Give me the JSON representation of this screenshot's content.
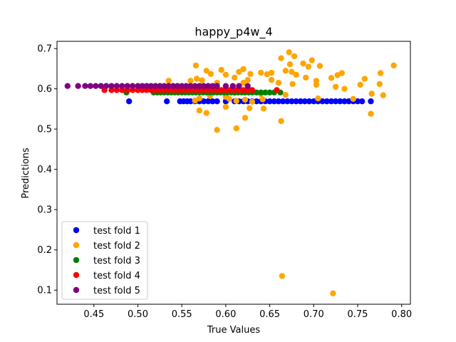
{
  "chart_data": {
    "type": "scatter",
    "title": "happy_p4w_4",
    "xlabel": "True Values",
    "ylabel": "Predictions",
    "xlim": [
      0.408,
      0.81
    ],
    "ylim": [
      0.065,
      0.718
    ],
    "xticks": [
      0.45,
      0.5,
      0.55,
      0.6,
      0.65,
      0.7,
      0.75,
      0.8
    ],
    "xtick_labels": [
      "0.45",
      "0.50",
      "0.55",
      "0.60",
      "0.65",
      "0.70",
      "0.75",
      "0.80"
    ],
    "yticks": [
      0.1,
      0.2,
      0.3,
      0.4,
      0.5,
      0.6,
      0.7
    ],
    "ytick_labels": [
      "0.1",
      "0.2",
      "0.3",
      "0.4",
      "0.5",
      "0.6",
      "0.7"
    ],
    "grid": false,
    "legend_position": "lower-left",
    "series": [
      {
        "name": "test fold 1",
        "color": "#0000ff",
        "points": [
          [
            0.49,
            0.569
          ],
          [
            0.533,
            0.569
          ],
          [
            0.548,
            0.569
          ],
          [
            0.552,
            0.569
          ],
          [
            0.556,
            0.569
          ],
          [
            0.56,
            0.569
          ],
          [
            0.565,
            0.569
          ],
          [
            0.57,
            0.569
          ],
          [
            0.575,
            0.569
          ],
          [
            0.58,
            0.569
          ],
          [
            0.585,
            0.569
          ],
          [
            0.59,
            0.569
          ],
          [
            0.6,
            0.569
          ],
          [
            0.61,
            0.569
          ],
          [
            0.615,
            0.569
          ],
          [
            0.62,
            0.569
          ],
          [
            0.625,
            0.569
          ],
          [
            0.63,
            0.569
          ],
          [
            0.635,
            0.569
          ],
          [
            0.64,
            0.569
          ],
          [
            0.645,
            0.569
          ],
          [
            0.65,
            0.569
          ],
          [
            0.655,
            0.569
          ],
          [
            0.66,
            0.569
          ],
          [
            0.665,
            0.569
          ],
          [
            0.67,
            0.569
          ],
          [
            0.675,
            0.569
          ],
          [
            0.68,
            0.569
          ],
          [
            0.685,
            0.569
          ],
          [
            0.69,
            0.569
          ],
          [
            0.695,
            0.569
          ],
          [
            0.7,
            0.569
          ],
          [
            0.705,
            0.569
          ],
          [
            0.71,
            0.569
          ],
          [
            0.715,
            0.569
          ],
          [
            0.72,
            0.569
          ],
          [
            0.725,
            0.569
          ],
          [
            0.73,
            0.569
          ],
          [
            0.735,
            0.569
          ],
          [
            0.74,
            0.569
          ],
          [
            0.745,
            0.569
          ],
          [
            0.75,
            0.569
          ],
          [
            0.755,
            0.569
          ],
          [
            0.765,
            0.569
          ]
        ]
      },
      {
        "name": "test fold 2",
        "color": "#ffa500",
        "points": [
          [
            0.672,
            0.691
          ],
          [
            0.678,
            0.681
          ],
          [
            0.663,
            0.676
          ],
          [
            0.698,
            0.671
          ],
          [
            0.791,
            0.658
          ],
          [
            0.566,
            0.658
          ],
          [
            0.673,
            0.661
          ],
          [
            0.688,
            0.663
          ],
          [
            0.694,
            0.655
          ],
          [
            0.707,
            0.657
          ],
          [
            0.595,
            0.647
          ],
          [
            0.62,
            0.649
          ],
          [
            0.578,
            0.645
          ],
          [
            0.668,
            0.645
          ],
          [
            0.675,
            0.642
          ],
          [
            0.615,
            0.642
          ],
          [
            0.64,
            0.64
          ],
          [
            0.652,
            0.64
          ],
          [
            0.732,
            0.639
          ],
          [
            0.727,
            0.634
          ],
          [
            0.776,
            0.639
          ],
          [
            0.583,
            0.637
          ],
          [
            0.6,
            0.635
          ],
          [
            0.628,
            0.637
          ],
          [
            0.647,
            0.636
          ],
          [
            0.68,
            0.635
          ],
          [
            0.72,
            0.627
          ],
          [
            0.758,
            0.625
          ],
          [
            0.567,
            0.625
          ],
          [
            0.573,
            0.621
          ],
          [
            0.61,
            0.628
          ],
          [
            0.625,
            0.622
          ],
          [
            0.652,
            0.622
          ],
          [
            0.691,
            0.628
          ],
          [
            0.703,
            0.62
          ],
          [
            0.535,
            0.62
          ],
          [
            0.56,
            0.62
          ],
          [
            0.59,
            0.615
          ],
          [
            0.62,
            0.615
          ],
          [
            0.66,
            0.615
          ],
          [
            0.676,
            0.612
          ],
          [
            0.753,
            0.61
          ],
          [
            0.775,
            0.612
          ],
          [
            0.735,
            0.6
          ],
          [
            0.725,
            0.605
          ],
          [
            0.703,
            0.61
          ],
          [
            0.61,
            0.59
          ],
          [
            0.64,
            0.587
          ],
          [
            0.766,
            0.588
          ],
          [
            0.779,
            0.584
          ],
          [
            0.705,
            0.576
          ],
          [
            0.745,
            0.575
          ],
          [
            0.668,
            0.585
          ],
          [
            0.6,
            0.58
          ],
          [
            0.582,
            0.582
          ],
          [
            0.57,
            0.576
          ],
          [
            0.565,
            0.571
          ],
          [
            0.604,
            0.575
          ],
          [
            0.622,
            0.573
          ],
          [
            0.612,
            0.57
          ],
          [
            0.63,
            0.568
          ],
          [
            0.642,
            0.574
          ],
          [
            0.6,
            0.555
          ],
          [
            0.627,
            0.552
          ],
          [
            0.643,
            0.551
          ],
          [
            0.57,
            0.546
          ],
          [
            0.578,
            0.54
          ],
          [
            0.622,
            0.528
          ],
          [
            0.765,
            0.538
          ],
          [
            0.663,
            0.52
          ],
          [
            0.612,
            0.502
          ],
          [
            0.59,
            0.498
          ],
          [
            0.664,
            0.135
          ],
          [
            0.722,
            0.092
          ]
        ]
      },
      {
        "name": "test fold 3",
        "color": "#008000",
        "points": [
          [
            0.487,
            0.591
          ],
          [
            0.518,
            0.591
          ],
          [
            0.522,
            0.591
          ],
          [
            0.526,
            0.591
          ],
          [
            0.53,
            0.591
          ],
          [
            0.534,
            0.591
          ],
          [
            0.538,
            0.591
          ],
          [
            0.542,
            0.591
          ],
          [
            0.546,
            0.591
          ],
          [
            0.55,
            0.591
          ],
          [
            0.554,
            0.591
          ],
          [
            0.558,
            0.591
          ],
          [
            0.562,
            0.591
          ],
          [
            0.566,
            0.591
          ],
          [
            0.57,
            0.591
          ],
          [
            0.574,
            0.591
          ],
          [
            0.578,
            0.591
          ],
          [
            0.582,
            0.591
          ],
          [
            0.586,
            0.591
          ],
          [
            0.59,
            0.591
          ],
          [
            0.594,
            0.591
          ],
          [
            0.598,
            0.591
          ],
          [
            0.602,
            0.591
          ],
          [
            0.606,
            0.591
          ],
          [
            0.61,
            0.591
          ],
          [
            0.614,
            0.591
          ],
          [
            0.618,
            0.591
          ],
          [
            0.622,
            0.591
          ],
          [
            0.626,
            0.591
          ],
          [
            0.63,
            0.591
          ],
          [
            0.635,
            0.591
          ],
          [
            0.64,
            0.591
          ],
          [
            0.645,
            0.591
          ],
          [
            0.65,
            0.591
          ],
          [
            0.655,
            0.591
          ],
          [
            0.662,
            0.591
          ]
        ]
      },
      {
        "name": "test fold 4",
        "color": "#ff0000",
        "points": [
          [
            0.462,
            0.597
          ],
          [
            0.47,
            0.597
          ],
          [
            0.476,
            0.597
          ],
          [
            0.482,
            0.597
          ],
          [
            0.488,
            0.597
          ],
          [
            0.494,
            0.597
          ],
          [
            0.5,
            0.597
          ],
          [
            0.505,
            0.597
          ],
          [
            0.51,
            0.597
          ],
          [
            0.515,
            0.597
          ],
          [
            0.52,
            0.597
          ],
          [
            0.525,
            0.597
          ],
          [
            0.53,
            0.597
          ],
          [
            0.535,
            0.597
          ],
          [
            0.54,
            0.597
          ],
          [
            0.545,
            0.597
          ],
          [
            0.55,
            0.597
          ],
          [
            0.555,
            0.597
          ],
          [
            0.56,
            0.597
          ],
          [
            0.565,
            0.597
          ],
          [
            0.57,
            0.597
          ],
          [
            0.575,
            0.597
          ],
          [
            0.58,
            0.597
          ],
          [
            0.585,
            0.597
          ],
          [
            0.59,
            0.597
          ],
          [
            0.595,
            0.597
          ],
          [
            0.6,
            0.597
          ],
          [
            0.605,
            0.597
          ],
          [
            0.61,
            0.597
          ],
          [
            0.615,
            0.597
          ],
          [
            0.62,
            0.597
          ],
          [
            0.625,
            0.597
          ],
          [
            0.63,
            0.597
          ],
          [
            0.658,
            0.597
          ]
        ]
      },
      {
        "name": "test fold 5",
        "color": "#800080",
        "points": [
          [
            0.42,
            0.607
          ],
          [
            0.432,
            0.607
          ],
          [
            0.44,
            0.607
          ],
          [
            0.446,
            0.607
          ],
          [
            0.452,
            0.607
          ],
          [
            0.458,
            0.607
          ],
          [
            0.464,
            0.607
          ],
          [
            0.47,
            0.607
          ],
          [
            0.476,
            0.607
          ],
          [
            0.482,
            0.607
          ],
          [
            0.488,
            0.607
          ],
          [
            0.494,
            0.607
          ],
          [
            0.5,
            0.607
          ],
          [
            0.505,
            0.607
          ],
          [
            0.51,
            0.607
          ],
          [
            0.515,
            0.607
          ],
          [
            0.52,
            0.607
          ],
          [
            0.525,
            0.607
          ],
          [
            0.53,
            0.607
          ],
          [
            0.535,
            0.607
          ],
          [
            0.54,
            0.607
          ],
          [
            0.545,
            0.607
          ],
          [
            0.55,
            0.607
          ],
          [
            0.555,
            0.607
          ],
          [
            0.56,
            0.607
          ],
          [
            0.565,
            0.607
          ],
          [
            0.57,
            0.607
          ],
          [
            0.575,
            0.607
          ],
          [
            0.58,
            0.607
          ],
          [
            0.585,
            0.607
          ],
          [
            0.59,
            0.607
          ],
          [
            0.6,
            0.607
          ],
          [
            0.608,
            0.607
          ],
          [
            0.615,
            0.607
          ],
          [
            0.625,
            0.607
          ]
        ]
      }
    ]
  }
}
